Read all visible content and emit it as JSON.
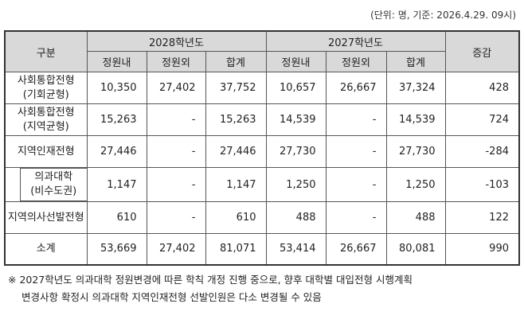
{
  "note": "(단위: 명, 기준: 2026.4.29. 09시)",
  "table": {
    "header": {
      "category": "구분",
      "groups": [
        {
          "label": "2028학년도",
          "columns": [
            "정원내",
            "정원외",
            "합계"
          ]
        },
        {
          "label": "2027학년도",
          "columns": [
            "정원내",
            "정원외",
            "합계"
          ]
        }
      ],
      "change": "증감"
    },
    "rows": [
      {
        "label": [
          "사회통합전형",
          "(기회균형)"
        ],
        "cells": [
          "10,350",
          "27,402",
          "37,752",
          "10,657",
          "26,667",
          "37,324",
          "428"
        ]
      },
      {
        "label": [
          "사회통합전형",
          "(지역균형)"
        ],
        "cells": [
          "15,263",
          "-",
          "15,263",
          "14,539",
          "-",
          "14,539",
          "724"
        ]
      },
      {
        "label": [
          "지역인재전형"
        ],
        "cells": [
          "27,446",
          "-",
          "27,446",
          "27,730",
          "-",
          "27,730",
          "-284"
        ]
      },
      {
        "label": [
          "의과대학",
          "(비수도권)"
        ],
        "cells": [
          "1,147",
          "-",
          "1,147",
          "1,250",
          "-",
          "1,250",
          "-103"
        ]
      },
      {
        "label": [
          "지역의사선발전형"
        ],
        "cells": [
          "610",
          "-",
          "610",
          "488",
          "-",
          "488",
          "122"
        ]
      },
      {
        "label": [
          "소계"
        ],
        "cells": [
          "53,669",
          "27,402",
          "81,071",
          "53,414",
          "26,667",
          "80,081",
          "990"
        ]
      }
    ]
  },
  "footnote": [
    "※ 2027학년도 의과대학 정원변경에 따른 학칙 개정 진행 중으로, 향후 대학별 대입전형 시행계획",
    "변경사항 확정시 의과대학 지역인재전형 선발인원은 다소 변경될 수 있음"
  ]
}
